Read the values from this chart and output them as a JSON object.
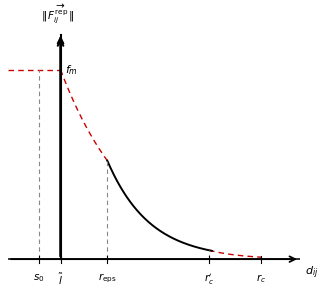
{
  "xlabel": "$d_{ij}$",
  "fm_label": "$f_m$",
  "x_ticks_labels": [
    "$s_0$",
    "$\\tilde{l}$",
    "$r_{\\mathrm{eps}}$",
    "$r_c'$",
    "$r_c$"
  ],
  "s0": 0.1,
  "l_tilde": 0.18,
  "r_eps": 0.35,
  "r_prime_c": 0.72,
  "r_c": 0.91,
  "f_m": 0.82,
  "black_curve_color": "#000000",
  "red_dashed_color": "#cc0000",
  "dashed_line_color": "#888888",
  "background_color": "#ffffff",
  "xlim_min": -0.01,
  "xlim_max": 1.02,
  "ylim_min": -0.12,
  "ylim_max": 1.0
}
